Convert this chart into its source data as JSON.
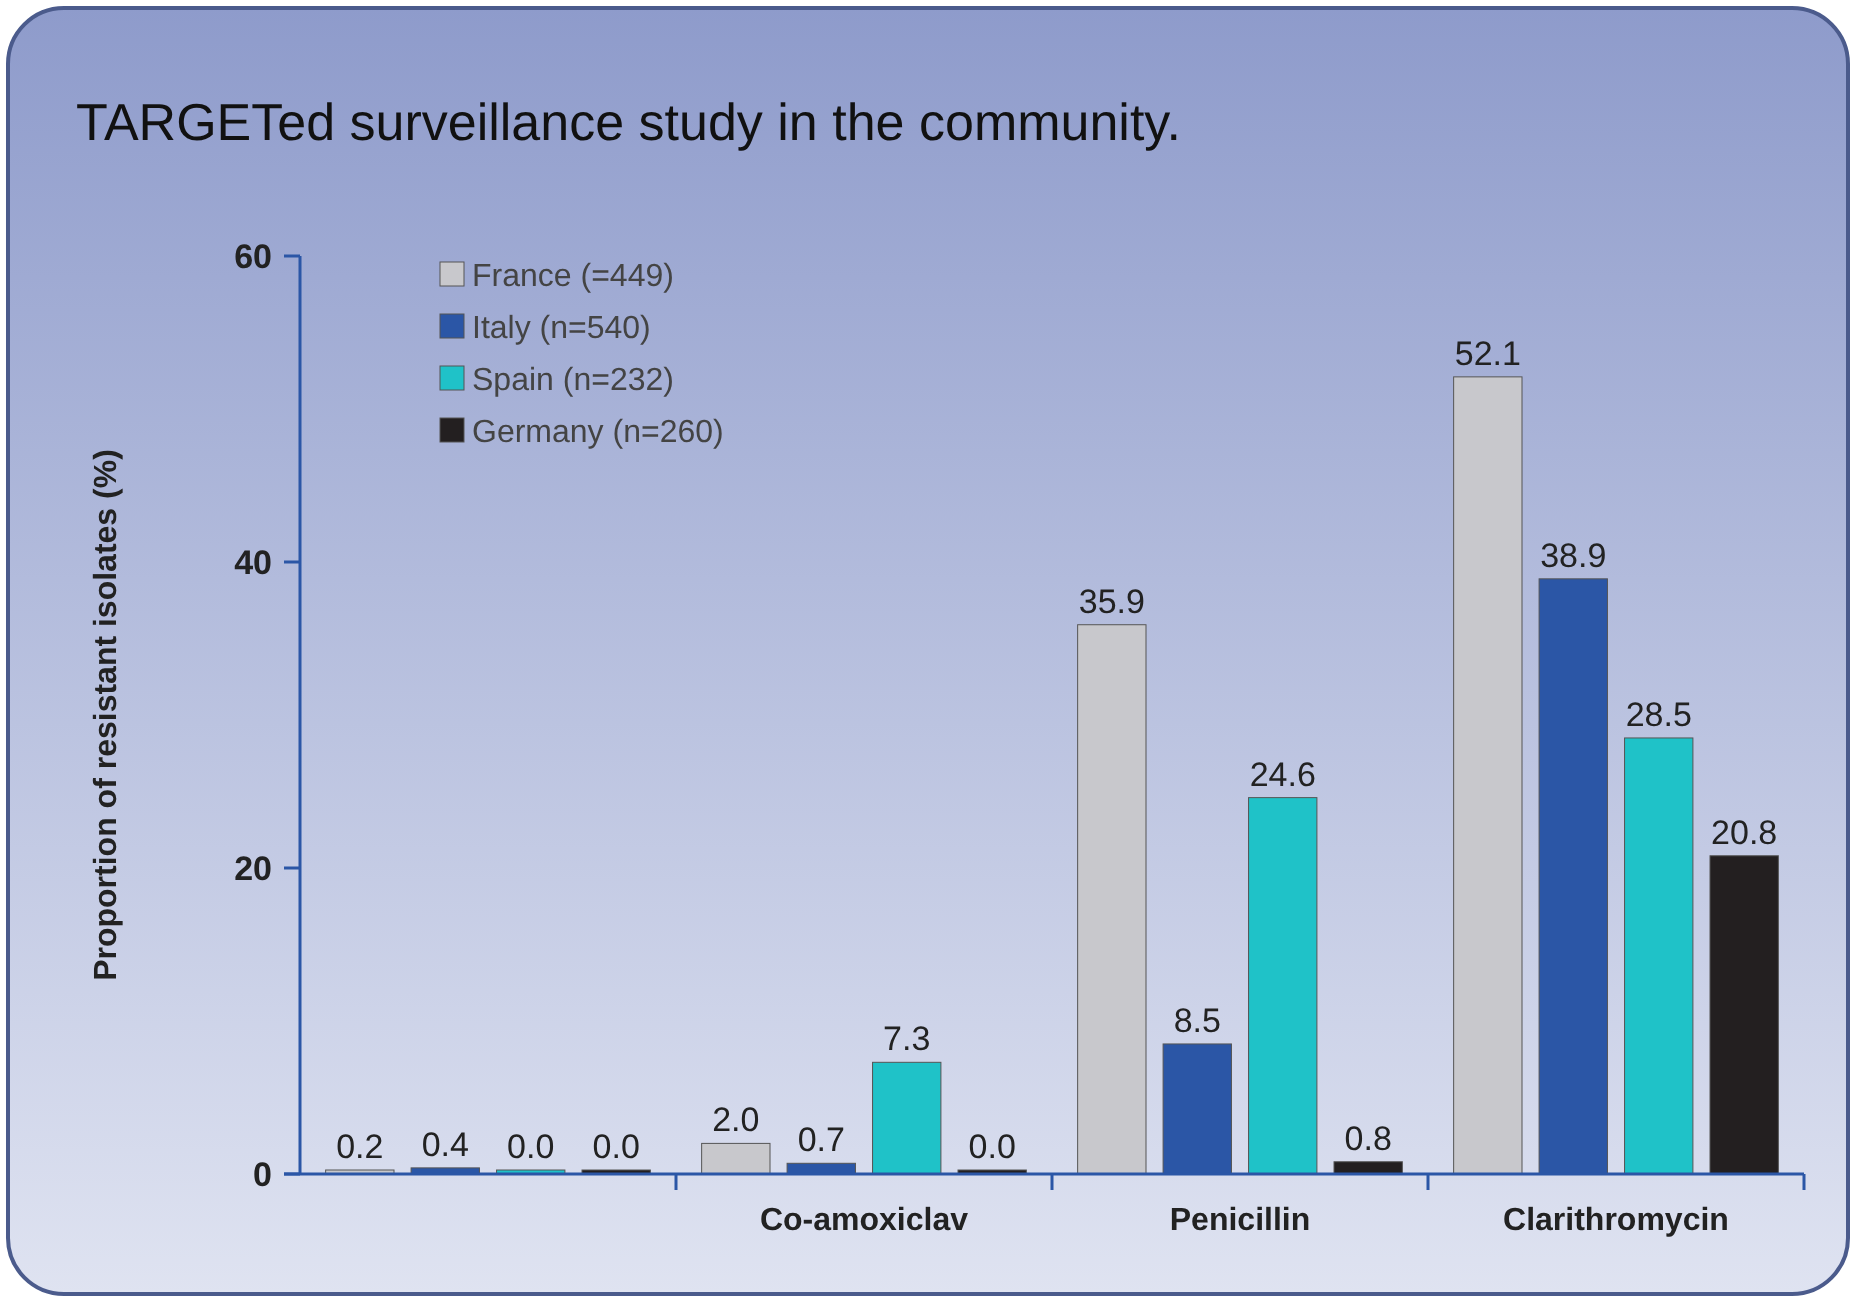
{
  "chart_data": {
    "type": "bar",
    "title": "TARGETed surveillance study in the community.",
    "ylabel": "Proportion of resistant isolates (%)",
    "categories": [
      null,
      "Co-amoxiclav",
      "Penicillin",
      "Clarithromycin"
    ],
    "series": [
      {
        "name": "France (=449)",
        "color": "#c8c8cc",
        "values": [
          0.2,
          2.0,
          35.9,
          52.1
        ],
        "value_labels": [
          "0.2",
          "2.0",
          "35.9",
          "52.1"
        ]
      },
      {
        "name": "Italy (n=540)",
        "color": "#2b56a6",
        "values": [
          0.4,
          0.7,
          8.5,
          38.9
        ],
        "value_labels": [
          "0.4",
          "0.7",
          "8.5",
          "38.9"
        ]
      },
      {
        "name": "Spain (n=232)",
        "color": "#1fc2c8",
        "values": [
          0.0,
          7.3,
          24.6,
          28.5
        ],
        "value_labels": [
          "0.0",
          "7.3",
          "24.6",
          "28.5"
        ]
      },
      {
        "name": "Germany (n=260)",
        "color": "#231f20",
        "values": [
          0.0,
          0.0,
          0.8,
          20.8
        ],
        "value_labels": [
          "0.0",
          "0.0",
          "0.8",
          "20.8"
        ]
      }
    ],
    "ylim": [
      0,
      60
    ],
    "yticks": [
      0,
      20,
      40,
      60
    ],
    "grid": false,
    "legend": "top left"
  }
}
